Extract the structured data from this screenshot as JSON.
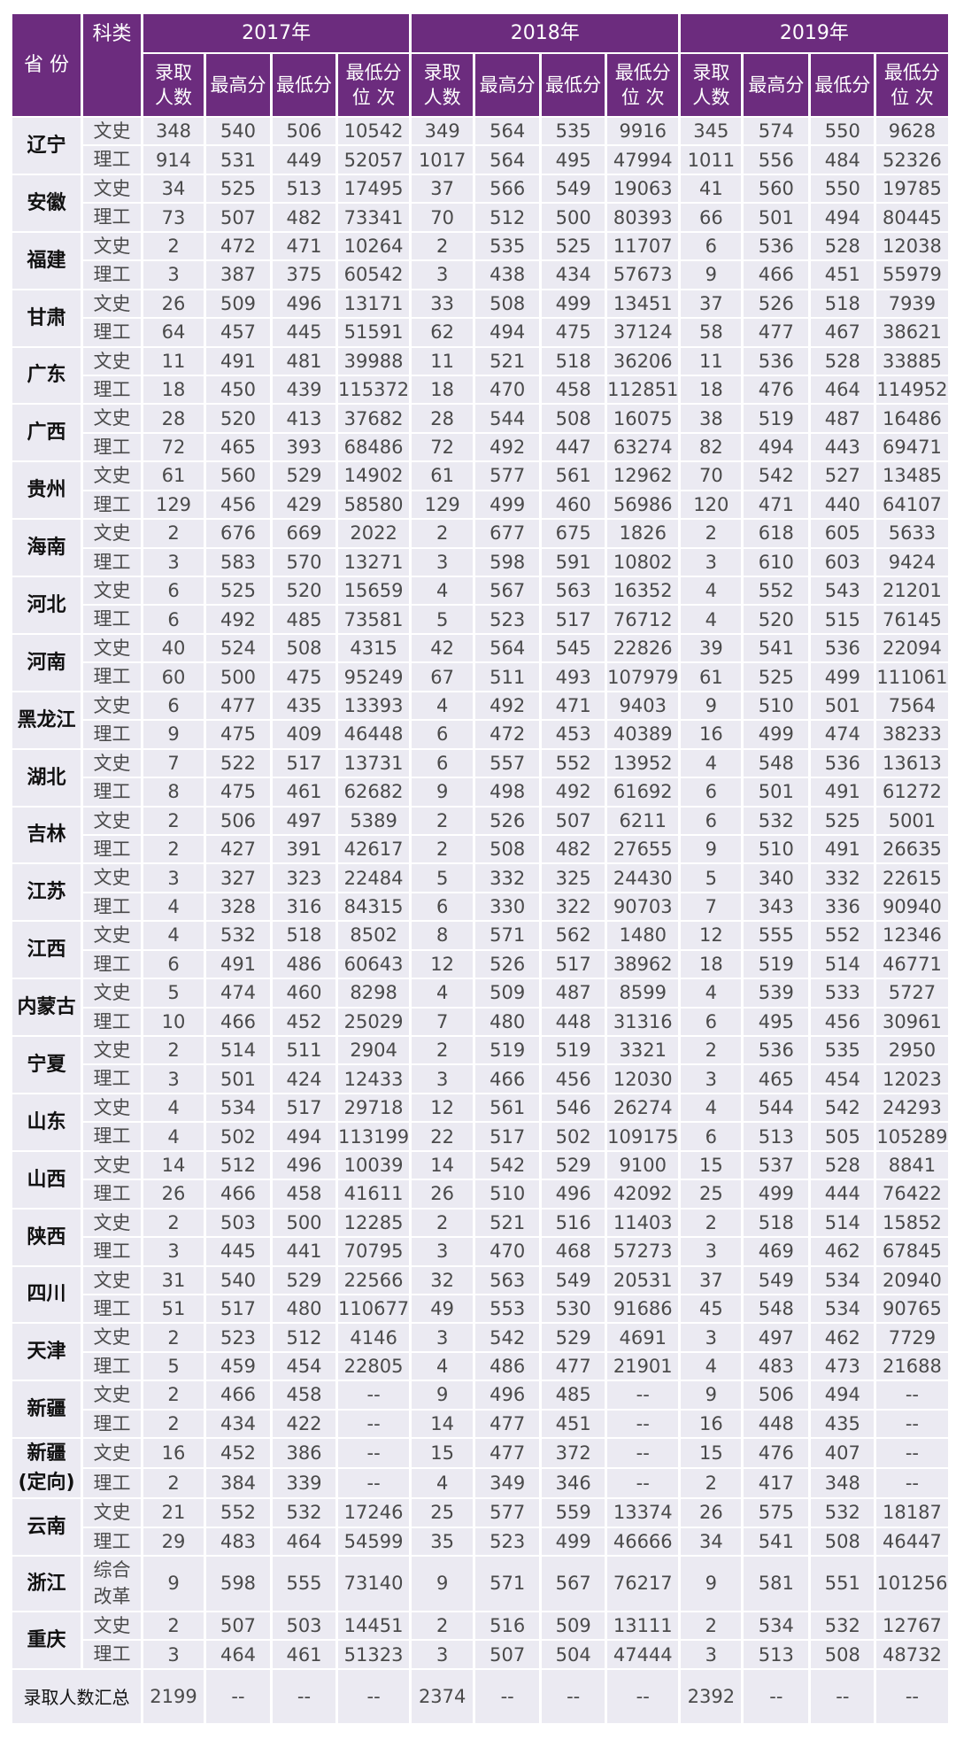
{
  "header": {
    "province": "省 份",
    "category": "科类",
    "years": [
      "2017年",
      "2018年",
      "2019年"
    ],
    "subcolumns": [
      "录取\n人数",
      "最高分",
      "最低分",
      "最低分\n位 次"
    ]
  },
  "provinces": [
    {
      "name": "辽宁",
      "rows": [
        {
          "type": "文史",
          "values": [
            "348",
            "540",
            "506",
            "10542",
            "349",
            "564",
            "535",
            "9916",
            "345",
            "574",
            "550",
            "9628"
          ]
        },
        {
          "type": "理工",
          "values": [
            "914",
            "531",
            "449",
            "52057",
            "1017",
            "564",
            "495",
            "47994",
            "1011",
            "556",
            "484",
            "52326"
          ]
        }
      ]
    },
    {
      "name": "安徽",
      "rows": [
        {
          "type": "文史",
          "values": [
            "34",
            "525",
            "513",
            "17495",
            "37",
            "566",
            "549",
            "19063",
            "41",
            "560",
            "550",
            "19785"
          ]
        },
        {
          "type": "理工",
          "values": [
            "73",
            "507",
            "482",
            "73341",
            "70",
            "512",
            "500",
            "80393",
            "66",
            "501",
            "494",
            "80445"
          ]
        }
      ]
    },
    {
      "name": "福建",
      "rows": [
        {
          "type": "文史",
          "values": [
            "2",
            "472",
            "471",
            "10264",
            "2",
            "535",
            "525",
            "11707",
            "6",
            "536",
            "528",
            "12038"
          ]
        },
        {
          "type": "理工",
          "values": [
            "3",
            "387",
            "375",
            "60542",
            "3",
            "438",
            "434",
            "57673",
            "9",
            "466",
            "451",
            "55979"
          ]
        }
      ]
    },
    {
      "name": "甘肃",
      "rows": [
        {
          "type": "文史",
          "values": [
            "26",
            "509",
            "496",
            "13171",
            "33",
            "508",
            "499",
            "13451",
            "37",
            "526",
            "518",
            "7939"
          ]
        },
        {
          "type": "理工",
          "values": [
            "64",
            "457",
            "445",
            "51591",
            "62",
            "494",
            "475",
            "37124",
            "58",
            "477",
            "467",
            "38621"
          ]
        }
      ]
    },
    {
      "name": "广东",
      "rows": [
        {
          "type": "文史",
          "values": [
            "11",
            "491",
            "481",
            "39988",
            "11",
            "521",
            "518",
            "36206",
            "11",
            "536",
            "528",
            "33885"
          ]
        },
        {
          "type": "理工",
          "values": [
            "18",
            "450",
            "439",
            "115372",
            "18",
            "470",
            "458",
            "112851",
            "18",
            "476",
            "464",
            "114952"
          ]
        }
      ]
    },
    {
      "name": "广西",
      "rows": [
        {
          "type": "文史",
          "values": [
            "28",
            "520",
            "413",
            "37682",
            "28",
            "544",
            "508",
            "16075",
            "38",
            "519",
            "487",
            "16486"
          ]
        },
        {
          "type": "理工",
          "values": [
            "72",
            "465",
            "393",
            "68486",
            "72",
            "492",
            "447",
            "63274",
            "82",
            "494",
            "443",
            "69471"
          ]
        }
      ]
    },
    {
      "name": "贵州",
      "rows": [
        {
          "type": "文史",
          "values": [
            "61",
            "560",
            "529",
            "14902",
            "61",
            "577",
            "561",
            "12962",
            "70",
            "542",
            "527",
            "13485"
          ]
        },
        {
          "type": "理工",
          "values": [
            "129",
            "456",
            "429",
            "58580",
            "129",
            "499",
            "460",
            "56986",
            "120",
            "471",
            "440",
            "64107"
          ]
        }
      ]
    },
    {
      "name": "海南",
      "rows": [
        {
          "type": "文史",
          "values": [
            "2",
            "676",
            "669",
            "2022",
            "2",
            "677",
            "675",
            "1826",
            "2",
            "618",
            "605",
            "5633"
          ]
        },
        {
          "type": "理工",
          "values": [
            "3",
            "583",
            "570",
            "13271",
            "3",
            "598",
            "591",
            "10802",
            "3",
            "610",
            "603",
            "9424"
          ]
        }
      ]
    },
    {
      "name": "河北",
      "rows": [
        {
          "type": "文史",
          "values": [
            "6",
            "525",
            "520",
            "15659",
            "4",
            "567",
            "563",
            "16352",
            "4",
            "552",
            "543",
            "21201"
          ]
        },
        {
          "type": "理工",
          "values": [
            "6",
            "492",
            "485",
            "73581",
            "5",
            "523",
            "517",
            "76712",
            "4",
            "520",
            "515",
            "76145"
          ]
        }
      ]
    },
    {
      "name": "河南",
      "rows": [
        {
          "type": "文史",
          "values": [
            "40",
            "524",
            "508",
            "4315",
            "42",
            "564",
            "545",
            "22826",
            "39",
            "541",
            "536",
            "22094"
          ]
        },
        {
          "type": "理工",
          "values": [
            "60",
            "500",
            "475",
            "95249",
            "67",
            "511",
            "493",
            "107979",
            "61",
            "525",
            "499",
            "111061"
          ]
        }
      ]
    },
    {
      "name": "黑龙江",
      "rows": [
        {
          "type": "文史",
          "values": [
            "6",
            "477",
            "435",
            "13393",
            "4",
            "492",
            "471",
            "9403",
            "9",
            "510",
            "501",
            "7564"
          ]
        },
        {
          "type": "理工",
          "values": [
            "9",
            "475",
            "409",
            "46448",
            "6",
            "472",
            "453",
            "40389",
            "16",
            "499",
            "474",
            "38233"
          ]
        }
      ]
    },
    {
      "name": "湖北",
      "rows": [
        {
          "type": "文史",
          "values": [
            "7",
            "522",
            "517",
            "13731",
            "6",
            "557",
            "552",
            "13952",
            "4",
            "548",
            "536",
            "13613"
          ]
        },
        {
          "type": "理工",
          "values": [
            "8",
            "475",
            "461",
            "62682",
            "9",
            "498",
            "492",
            "61692",
            "6",
            "501",
            "491",
            "61272"
          ]
        }
      ]
    },
    {
      "name": "吉林",
      "rows": [
        {
          "type": "文史",
          "values": [
            "2",
            "506",
            "497",
            "5389",
            "2",
            "526",
            "507",
            "6211",
            "6",
            "532",
            "525",
            "5001"
          ]
        },
        {
          "type": "理工",
          "values": [
            "2",
            "427",
            "391",
            "42617",
            "2",
            "508",
            "482",
            "27655",
            "9",
            "510",
            "491",
            "26635"
          ]
        }
      ]
    },
    {
      "name": "江苏",
      "rows": [
        {
          "type": "文史",
          "values": [
            "3",
            "327",
            "323",
            "22484",
            "5",
            "332",
            "325",
            "24430",
            "5",
            "340",
            "332",
            "22615"
          ]
        },
        {
          "type": "理工",
          "values": [
            "4",
            "328",
            "316",
            "84315",
            "6",
            "330",
            "322",
            "90703",
            "7",
            "343",
            "336",
            "90940"
          ]
        }
      ]
    },
    {
      "name": "江西",
      "rows": [
        {
          "type": "文史",
          "values": [
            "4",
            "532",
            "518",
            "8502",
            "8",
            "571",
            "562",
            "1480",
            "12",
            "555",
            "552",
            "12346"
          ]
        },
        {
          "type": "理工",
          "values": [
            "6",
            "491",
            "486",
            "60643",
            "12",
            "526",
            "517",
            "38962",
            "18",
            "519",
            "514",
            "46771"
          ]
        }
      ]
    },
    {
      "name": "内蒙古",
      "rows": [
        {
          "type": "文史",
          "values": [
            "5",
            "474",
            "460",
            "8298",
            "4",
            "509",
            "487",
            "8599",
            "4",
            "539",
            "533",
            "5727"
          ]
        },
        {
          "type": "理工",
          "values": [
            "10",
            "466",
            "452",
            "25029",
            "7",
            "480",
            "448",
            "31316",
            "6",
            "495",
            "456",
            "30961"
          ]
        }
      ]
    },
    {
      "name": "宁夏",
      "rows": [
        {
          "type": "文史",
          "values": [
            "2",
            "514",
            "511",
            "2904",
            "2",
            "519",
            "519",
            "3321",
            "2",
            "536",
            "535",
            "2950"
          ]
        },
        {
          "type": "理工",
          "values": [
            "3",
            "501",
            "424",
            "12433",
            "3",
            "466",
            "456",
            "12030",
            "3",
            "465",
            "454",
            "12023"
          ]
        }
      ]
    },
    {
      "name": "山东",
      "rows": [
        {
          "type": "文史",
          "values": [
            "4",
            "534",
            "517",
            "29718",
            "12",
            "561",
            "546",
            "26274",
            "4",
            "544",
            "542",
            "24293"
          ]
        },
        {
          "type": "理工",
          "values": [
            "4",
            "502",
            "494",
            "113199",
            "22",
            "517",
            "502",
            "109175",
            "6",
            "513",
            "505",
            "105289"
          ]
        }
      ]
    },
    {
      "name": "山西",
      "rows": [
        {
          "type": "文史",
          "values": [
            "14",
            "512",
            "496",
            "10039",
            "14",
            "542",
            "529",
            "9100",
            "15",
            "537",
            "528",
            "8841"
          ]
        },
        {
          "type": "理工",
          "values": [
            "26",
            "466",
            "458",
            "41611",
            "26",
            "510",
            "496",
            "42092",
            "25",
            "499",
            "444",
            "76422"
          ]
        }
      ]
    },
    {
      "name": "陕西",
      "rows": [
        {
          "type": "文史",
          "values": [
            "2",
            "503",
            "500",
            "12285",
            "2",
            "521",
            "516",
            "11403",
            "2",
            "518",
            "514",
            "15852"
          ]
        },
        {
          "type": "理工",
          "values": [
            "3",
            "445",
            "441",
            "70795",
            "3",
            "470",
            "468",
            "57273",
            "3",
            "469",
            "462",
            "67845"
          ]
        }
      ]
    },
    {
      "name": "四川",
      "rows": [
        {
          "type": "文史",
          "values": [
            "31",
            "540",
            "529",
            "22566",
            "32",
            "563",
            "549",
            "20531",
            "37",
            "549",
            "534",
            "20940"
          ]
        },
        {
          "type": "理工",
          "values": [
            "51",
            "517",
            "480",
            "110677",
            "49",
            "553",
            "530",
            "91686",
            "45",
            "548",
            "534",
            "90765"
          ]
        }
      ]
    },
    {
      "name": "天津",
      "rows": [
        {
          "type": "文史",
          "values": [
            "2",
            "523",
            "512",
            "4146",
            "3",
            "542",
            "529",
            "4691",
            "3",
            "497",
            "462",
            "7729"
          ]
        },
        {
          "type": "理工",
          "values": [
            "5",
            "459",
            "454",
            "22805",
            "4",
            "486",
            "477",
            "21901",
            "4",
            "483",
            "473",
            "21688"
          ]
        }
      ]
    },
    {
      "name": "新疆",
      "rows": [
        {
          "type": "文史",
          "values": [
            "2",
            "466",
            "458",
            "--",
            "9",
            "496",
            "485",
            "--",
            "9",
            "506",
            "494",
            "--"
          ]
        },
        {
          "type": "理工",
          "values": [
            "2",
            "434",
            "422",
            "--",
            "14",
            "477",
            "451",
            "--",
            "16",
            "448",
            "435",
            "--"
          ]
        }
      ]
    },
    {
      "name": "新疆\n(定向)",
      "rows": [
        {
          "type": "文史",
          "values": [
            "16",
            "452",
            "386",
            "--",
            "15",
            "477",
            "372",
            "--",
            "15",
            "476",
            "407",
            "--"
          ]
        },
        {
          "type": "理工",
          "values": [
            "2",
            "384",
            "339",
            "--",
            "4",
            "349",
            "346",
            "--",
            "2",
            "417",
            "348",
            "--"
          ]
        }
      ]
    },
    {
      "name": "云南",
      "rows": [
        {
          "type": "文史",
          "values": [
            "21",
            "552",
            "532",
            "17246",
            "25",
            "577",
            "559",
            "13374",
            "26",
            "575",
            "532",
            "18187"
          ]
        },
        {
          "type": "理工",
          "values": [
            "29",
            "483",
            "464",
            "54599",
            "35",
            "523",
            "499",
            "46666",
            "34",
            "541",
            "508",
            "46447"
          ]
        }
      ]
    },
    {
      "name": "浙江",
      "rows": [
        {
          "type": "综合\n改革",
          "values": [
            "9",
            "598",
            "555",
            "73140",
            "9",
            "571",
            "567",
            "76217",
            "9",
            "581",
            "551",
            "101256"
          ]
        }
      ]
    },
    {
      "name": "重庆",
      "rows": [
        {
          "type": "文史",
          "values": [
            "2",
            "507",
            "503",
            "14451",
            "2",
            "516",
            "509",
            "13111",
            "2",
            "534",
            "532",
            "12767"
          ]
        },
        {
          "type": "理工",
          "values": [
            "3",
            "464",
            "461",
            "51323",
            "3",
            "507",
            "504",
            "47444",
            "3",
            "513",
            "508",
            "48732"
          ]
        }
      ]
    }
  ],
  "total": {
    "label": "录取人数汇总",
    "values": [
      "2199",
      "--",
      "--",
      "--",
      "2374",
      "--",
      "--",
      "--",
      "2392",
      "--",
      "--",
      "--"
    ]
  },
  "colors": {
    "header_bg": "#6c2c7e",
    "cell_bg": "#ebeaf2"
  }
}
